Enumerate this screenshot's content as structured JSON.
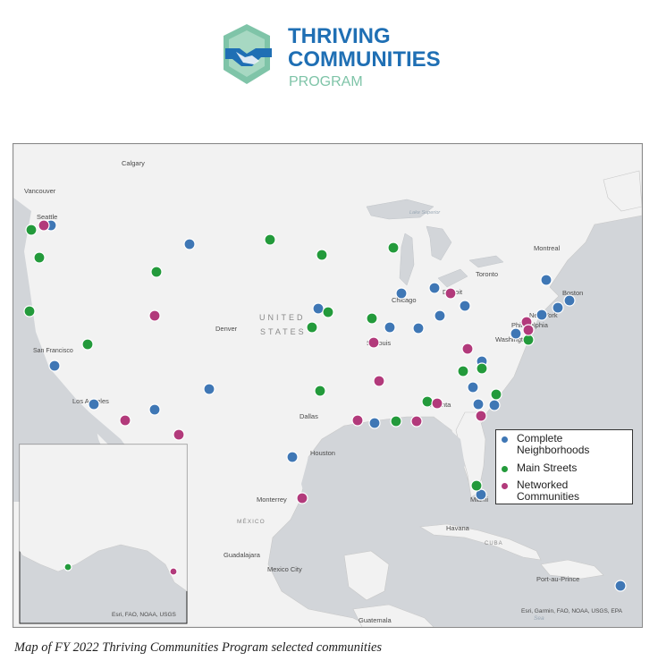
{
  "logo": {
    "line1": "THRIVING",
    "line2": "COMMUNITIES",
    "line3": "PROGRAM",
    "icon": "handshake-icon",
    "colors": {
      "primary": "#1f6fb4",
      "secondary": "#7fc4a8"
    }
  },
  "map": {
    "country_labels": [
      "UNITED",
      "STATES",
      "MÉXICO",
      "CUBA"
    ],
    "city_labels": [
      "Calgary",
      "Vancouver",
      "Seattle",
      "Montreal",
      "Toronto",
      "Boston",
      "New York",
      "Philadelphia",
      "Washington",
      "Chicago",
      "Detroit",
      "St Louis",
      "Denver",
      "San Francisco",
      "Los Angeles",
      "Dallas",
      "Atlanta",
      "Houston",
      "Miami",
      "Monterrey",
      "Havana",
      "Guadalajara",
      "Mexico City",
      "Port-au-Prince",
      "Guatemala"
    ],
    "water_labels": [
      "Lake Superior",
      "Sea"
    ],
    "attribution_inset": "Esri, FAO, NOAA, USGS",
    "attribution_main": "Esri, Garmin, FAO, NOAA, USGS, EPA",
    "colors": {
      "land": "#f2f2f2",
      "water": "#d2d5d9",
      "complete": "#3f77b5",
      "main": "#239a3b",
      "networked": "#b23a7b"
    }
  },
  "legend": {
    "items": [
      {
        "label": "Complete Neighborhoods",
        "color": "#3f77b5"
      },
      {
        "label": "Main Streets",
        "color": "#239a3b"
      },
      {
        "label": "Networked Communities",
        "color": "#b23a7b"
      }
    ]
  },
  "caption": "Map of FY 2022 Thriving Communities Program selected communities"
}
